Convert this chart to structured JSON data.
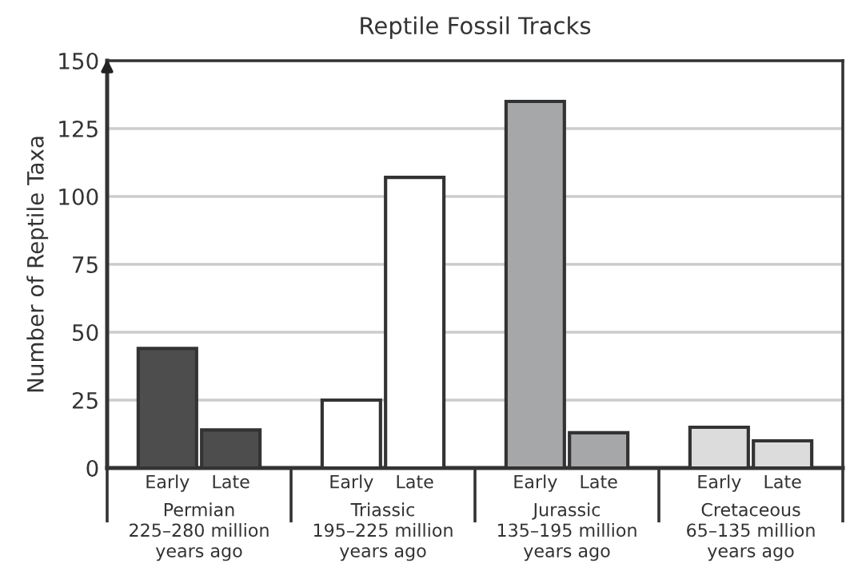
{
  "chart_data": {
    "type": "bar",
    "title": "Reptile Fossil Tracks",
    "ylabel": "Number of Reptile Taxa",
    "categories": [
      "Early",
      "Late",
      "Early",
      "Late",
      "Early",
      "Late",
      "Early",
      "Late"
    ],
    "values": [
      44,
      14,
      25,
      107,
      135,
      13,
      15,
      10
    ],
    "colors": [
      "#4d4d4d",
      "#4d4d4d",
      "#ffffff",
      "#ffffff",
      "#a6a7a9",
      "#a6a7a9",
      "#dcdcdc",
      "#dcdcdc"
    ],
    "ylim": [
      0,
      150
    ],
    "yticks": [
      0,
      25,
      50,
      75,
      100,
      125,
      150
    ],
    "grid": "y",
    "legend": false,
    "annotations": [
      "Permian\n225–280 million\nyears ago",
      "Triassic\n195–225 million\nyears ago",
      "Jurassic\n135–195 million\nyears ago",
      "Cretaceous\n65–135 million\nyears ago"
    ]
  }
}
